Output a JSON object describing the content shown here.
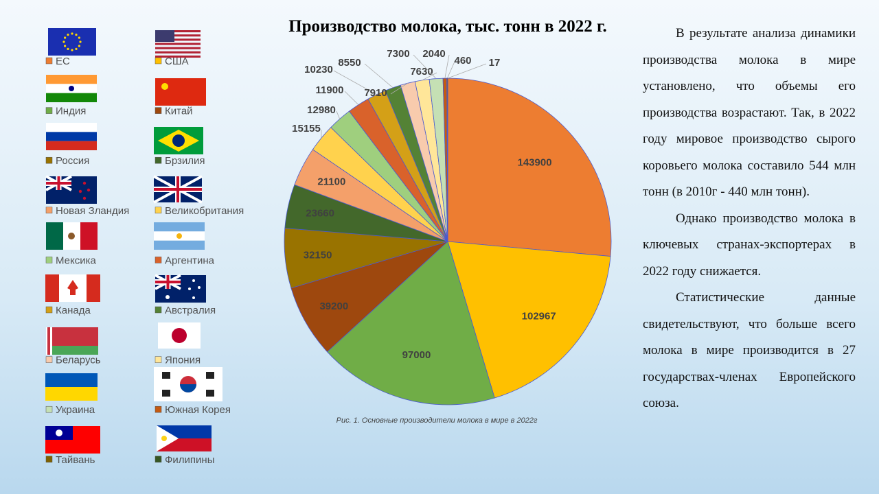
{
  "chart_data": {
    "type": "pie",
    "title": "Производство  молока, тыс. тонн в 2022 г.",
    "caption": "Рис. 1. Основные производители молока в мире в 2022г",
    "categories": [
      "ЕС",
      "США",
      "Индия",
      "Китай",
      "Россия",
      "Брзилия",
      "Новая Зландия",
      "Великобритания",
      "Мексика",
      "Аргентина",
      "Канада",
      "Австралия",
      "Беларусь",
      "Япония",
      "Украина",
      "Южная Корея",
      "Тайвань",
      "Филипины"
    ],
    "values": [
      143900,
      102967,
      97000,
      39200,
      32150,
      23660,
      21100,
      15155,
      12980,
      11900,
      10230,
      8550,
      7910,
      7630,
      7300,
      2040,
      460,
      17
    ],
    "colors": [
      "#ed7d31",
      "#ffc000",
      "#70ad47",
      "#9e480e",
      "#997300",
      "#43682b",
      "#f4a06a",
      "#ffd24d",
      "#9fcf7e",
      "#d9622b",
      "#d4a017",
      "#548235",
      "#f8cbad",
      "#ffe699",
      "#c5e0b4",
      "#c55a11",
      "#7f6000",
      "#375623"
    ]
  },
  "text": {
    "paragraphs": [
      "В результате анализа динамики производства молока в мире установлено, что объемы его производства возрастают. Так, в 2022 году мировое производство сырого коровьего молока  составило 544 млн тонн (в 2010г - 440  млн тонн).",
      "Однако производство молока в ключевых странах-экспортерах в 2022 году снижается.",
      "Статистические данные свидетельствуют, что больше всего молока в мире производится в 27 государствах-членах Европейского союза."
    ]
  }
}
